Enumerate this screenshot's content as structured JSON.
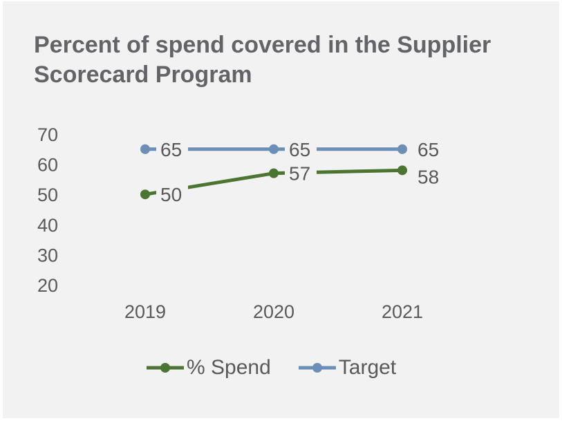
{
  "chart_data": {
    "type": "line",
    "title": "Percent of spend covered in the Supplier Scorecard Program",
    "title_lines": [
      "Percent of spend covered in the Supplier",
      "Scorecard Program"
    ],
    "categories": [
      "2019",
      "2020",
      "2021"
    ],
    "series": [
      {
        "name": "% Spend",
        "values": [
          50,
          57,
          58
        ],
        "color": "#4b7530"
      },
      {
        "name": "Target",
        "values": [
          65,
          65,
          65
        ],
        "color": "#6b8fb6"
      }
    ],
    "y_ticks": [
      "70",
      "60",
      "50",
      "40",
      "30",
      "20"
    ],
    "ylim": [
      20,
      70
    ],
    "xlabel": "",
    "ylabel": "",
    "grid": false,
    "data_labels": true,
    "legend_position": "bottom"
  },
  "colors": {
    "background": "#f2f2f2",
    "title": "#626469",
    "text": "#595959"
  }
}
